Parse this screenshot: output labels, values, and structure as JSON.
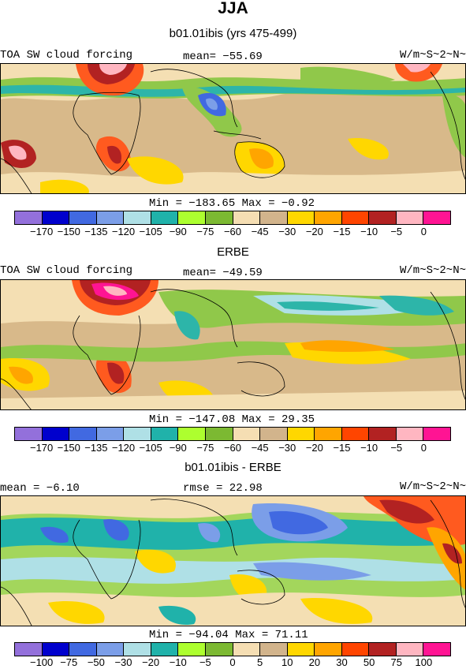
{
  "figure": {
    "title": "JJA"
  },
  "panels": [
    {
      "subtitle": "b01.01ibis (yrs 475-499)",
      "left_label": "TOA SW cloud forcing",
      "center_label": "mean= −55.69",
      "right_label": "W/m~S~2~N~",
      "min_max": "Min = −183.65 Max =  −0.92",
      "colorbar": {
        "ticks": [
          "−170",
          "−150",
          "−135",
          "−120",
          "−105",
          "−90",
          "−75",
          "−60",
          "−45",
          "−30",
          "−20",
          "−15",
          "−10",
          "−5",
          "0"
        ],
        "colors": [
          "#9370db",
          "#0000cd",
          "#4169e1",
          "#7b9ee8",
          "#afe0e6",
          "#20b2aa",
          "#adff2f",
          "#7cb932",
          "#f5deb3",
          "#d2b48c",
          "#ffd700",
          "#ffa500",
          "#ff4500",
          "#b22222",
          "#ffb6c1",
          "#ff1493"
        ]
      }
    },
    {
      "subtitle": "ERBE",
      "left_label": "TOA SW cloud forcing",
      "center_label": "mean= −49.59",
      "right_label": "W/m~S~2~N~",
      "min_max": "Min = −147.08 Max =  29.35",
      "colorbar": {
        "ticks": [
          "−170",
          "−150",
          "−135",
          "−120",
          "−105",
          "−90",
          "−75",
          "−60",
          "−45",
          "−30",
          "−20",
          "−15",
          "−10",
          "−5",
          "0"
        ],
        "colors": [
          "#9370db",
          "#0000cd",
          "#4169e1",
          "#7b9ee8",
          "#afe0e6",
          "#20b2aa",
          "#adff2f",
          "#7cb932",
          "#f5deb3",
          "#d2b48c",
          "#ffd700",
          "#ffa500",
          "#ff4500",
          "#b22222",
          "#ffb6c1",
          "#ff1493"
        ]
      }
    },
    {
      "subtitle": "b01.01ibis - ERBE",
      "left_label": "mean =  −6.10",
      "center_label": "rmse =  22.98",
      "right_label": "W/m~S~2~N~",
      "min_max": "Min = −94.04 Max =  71.11",
      "colorbar": {
        "ticks": [
          "−100",
          "−75",
          "−50",
          "−30",
          "−20",
          "−10",
          "−5",
          "0",
          "5",
          "10",
          "20",
          "30",
          "50",
          "75",
          "100"
        ],
        "colors": [
          "#9370db",
          "#0000cd",
          "#4169e1",
          "#7b9ee8",
          "#afe0e6",
          "#20b2aa",
          "#adff2f",
          "#7cb932",
          "#f5deb3",
          "#d2b48c",
          "#ffd700",
          "#ffa500",
          "#ff4500",
          "#b22222",
          "#ffb6c1",
          "#ff1493"
        ]
      }
    }
  ]
}
